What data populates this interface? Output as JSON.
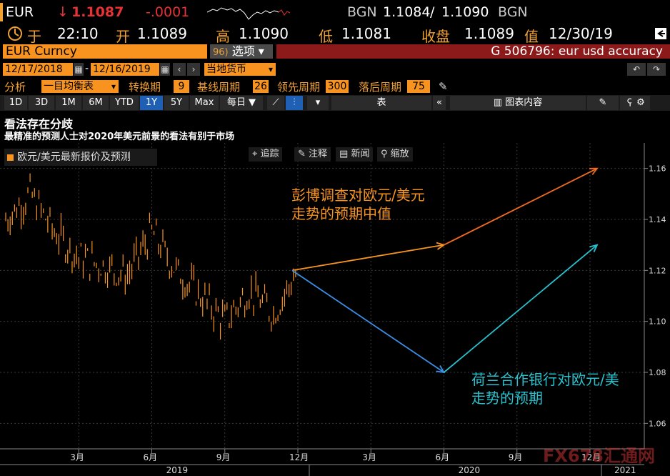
{
  "quote": {
    "ticker": "EUR",
    "arrow": "↓",
    "last": "1.1087",
    "change": "-.0001",
    "src1": "BGN",
    "bid": "1.1084",
    "sep": "/",
    "ask": "1.1090",
    "src2": "BGN"
  },
  "stats": {
    "time_label": "于",
    "time": "22:10",
    "open_label": "开",
    "open": "1.1089",
    "high_label": "高",
    "high": "1.1090",
    "low_label": "低",
    "low": "1.1081",
    "close_label": "收盘",
    "close": "1.1089",
    "date_label": "值",
    "date": "12/30/19"
  },
  "security": {
    "name": "EUR Curncy",
    "options_code": "96)",
    "options_label": "选项 ▾",
    "function_text": "G 506796: eur usd accuracy"
  },
  "date_range": {
    "start": "12/17/2018",
    "dash": "-",
    "end": "12/16/2019",
    "currency": "当地货币"
  },
  "analysis": {
    "label": "分析",
    "study": "一目均衡表",
    "conv_label": "转换期",
    "conv": "9",
    "base_label": "基线周期",
    "base": "26",
    "lead_label": "领先周期",
    "lead": "300",
    "lag_label": "落后周期",
    "lag": "75"
  },
  "toolbar": {
    "periods": [
      "1D",
      "3D",
      "1M",
      "6M",
      "YTD",
      "1Y",
      "5Y",
      "Max"
    ],
    "active": "1Y",
    "freq": "每日 ▼",
    "table": "表",
    "chart_content": "图表内容"
  },
  "chart_tools": {
    "track": "追踪",
    "annotate": "注释",
    "news": "新闻",
    "zoom": "缩放"
  },
  "titles": {
    "main": "看法存在分歧",
    "sub": "最精准的预测人士对2020年美元前景的看法有别于市场"
  },
  "legend": {
    "label": "欧元/美元最新报价及预测"
  },
  "annotations": {
    "bloomberg_1": "彭博调查对欧元/美元",
    "bloomberg_2": "走势的预期中值",
    "ing_1": "荷兰合作银行对欧元/美",
    "ing_2": "走势的预期"
  },
  "watermark": "FX678汇通网",
  "colors": {
    "price": "#f7931e",
    "survey": "#f26b1d",
    "rabo_down": "#3b8fe6",
    "rabo_up": "#27c2cf"
  },
  "chart_data": {
    "type": "line",
    "title": "看法存在分歧",
    "subtitle": "最精准的预测人士对2020年美元前景的看法有别于市场",
    "xlabel": "",
    "ylabel": "",
    "ylim": [
      1.05,
      1.17
    ],
    "y_ticks": [
      "1.16",
      "1.14",
      "1.12",
      "1.10",
      "1.08",
      "1.06"
    ],
    "x_ticks": [
      "3月",
      "6月",
      "9月",
      "12月",
      "3月",
      "6月",
      "9月",
      "12月"
    ],
    "year_labels": [
      "2019",
      "2020",
      "2021"
    ],
    "series": [
      {
        "name": "欧元/美元最新报价及预测",
        "x": [
          "2018-12",
          "2019-01",
          "2019-02",
          "2019-03",
          "2019-04",
          "2019-05",
          "2019-06",
          "2019-07",
          "2019-08",
          "2019-09",
          "2019-10",
          "2019-11",
          "2019-12"
        ],
        "values": [
          1.14,
          1.15,
          1.135,
          1.125,
          1.122,
          1.118,
          1.135,
          1.12,
          1.11,
          1.1,
          1.112,
          1.103,
          1.12
        ]
      },
      {
        "name": "彭博调查对欧元/美元走势的预期中值",
        "x": [
          "2019-12",
          "2020-06",
          "2020-12"
        ],
        "values": [
          1.12,
          1.13,
          1.16
        ]
      },
      {
        "name": "荷兰合作银行对欧元/美走势的预期",
        "x": [
          "2019-12",
          "2020-06",
          "2020-12"
        ],
        "values": [
          1.12,
          1.08,
          1.13
        ]
      }
    ],
    "grid": true
  }
}
